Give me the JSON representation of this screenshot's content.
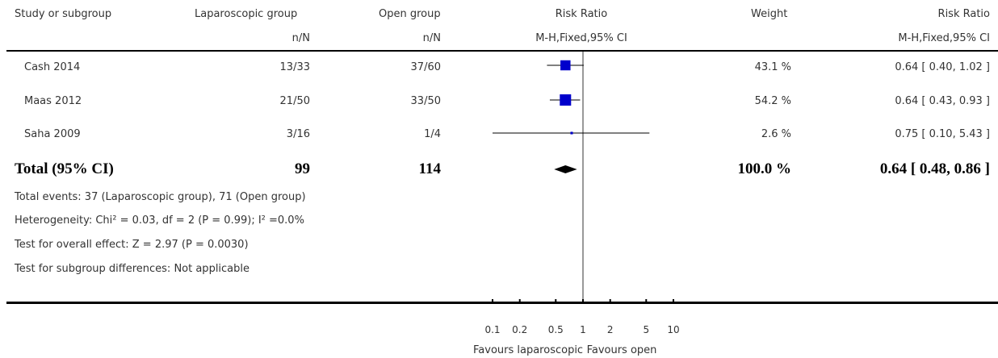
{
  "header": {
    "study": "Study or subgroup",
    "group1": "Laparoscopic group",
    "group2": "Open group",
    "rr": "Risk Ratio",
    "weight": "Weight",
    "rr2": "Risk Ratio",
    "n1": "n/N",
    "n2": "n/N",
    "method": "M-H,Fixed,95% CI",
    "method2": "M-H,Fixed,95% CI"
  },
  "studies": [
    {
      "name": "Cash 2014",
      "lap": "13/33",
      "open": "37/60",
      "weight": "43.1 %",
      "ci_text": "0.64 [ 0.40, 1.02 ]"
    },
    {
      "name": "Maas 2012",
      "lap": "21/50",
      "open": "33/50",
      "weight": "54.2 %",
      "ci_text": "0.64 [ 0.43, 0.93 ]"
    },
    {
      "name": "Saha 2009",
      "lap": "3/16",
      "open": "1/4",
      "weight": "2.6 %",
      "ci_text": "0.75 [ 0.10, 5.43 ]"
    }
  ],
  "total": {
    "label": "Total (95% CI)",
    "lap": "99",
    "open": "114",
    "weight": "100.0 %",
    "ci_text": "0.64 [ 0.48, 0.86 ]"
  },
  "footnotes": {
    "events": "Total events: 37 (Laparoscopic group), 71 (Open group)",
    "heterogeneity": "Heterogeneity: Chi² = 0.03, df = 2 (P = 0.99); I² =0.0%",
    "overall": "Test for overall effect: Z = 2.97 (P = 0.0030)",
    "subgroup": "Test for subgroup differences: Not applicable"
  },
  "axis": {
    "favours_left": "Favours laparoscopic",
    "favours_right": "Favours open"
  },
  "chart_data": {
    "type": "forest",
    "x_scale": "log",
    "xlim": [
      0.1,
      10
    ],
    "reference_line": 1,
    "ticks": [
      0.1,
      0.2,
      0.5,
      1,
      2,
      5,
      10
    ],
    "tick_labels": [
      "0.1",
      "0.2",
      "0.5",
      "1",
      "2",
      "5",
      "10"
    ],
    "marker_color": "#0000cc",
    "studies": [
      {
        "name": "Cash 2014",
        "rr": 0.64,
        "lower": 0.4,
        "upper": 1.02,
        "weight": 43.1
      },
      {
        "name": "Maas 2012",
        "rr": 0.64,
        "lower": 0.43,
        "upper": 0.93,
        "weight": 54.2
      },
      {
        "name": "Saha 2009",
        "rr": 0.75,
        "lower": 0.1,
        "upper": 5.43,
        "weight": 2.6
      }
    ],
    "pooled": {
      "rr": 0.64,
      "lower": 0.48,
      "upper": 0.86,
      "weight": 100.0
    }
  }
}
